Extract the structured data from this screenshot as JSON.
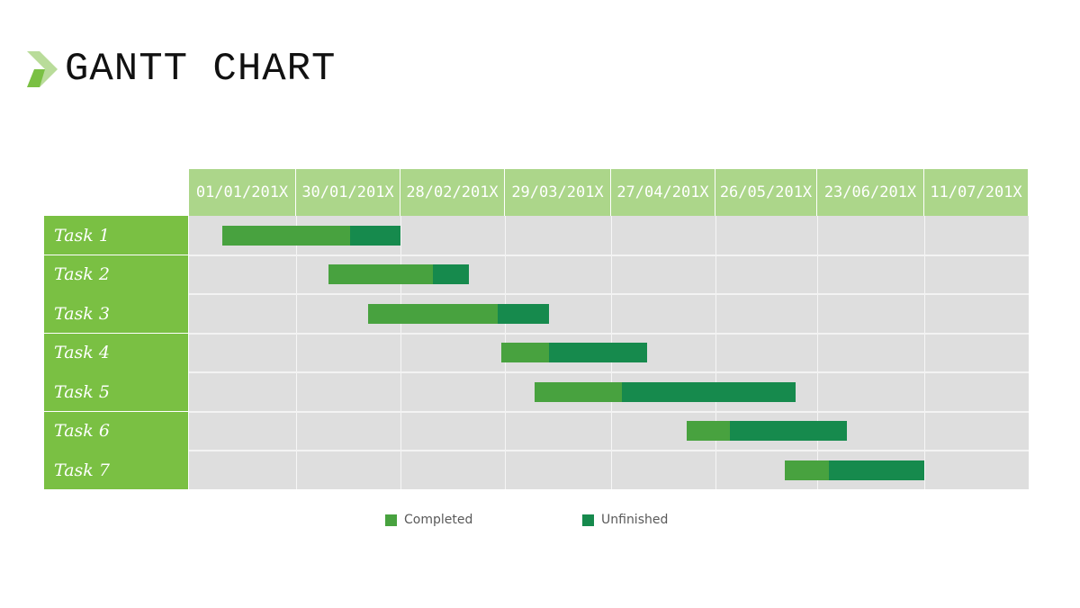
{
  "page": {
    "title": "GANTT CHART"
  },
  "colors": {
    "accent": "#7ac043",
    "header_bg": "#acd68a",
    "completed": "#48a23f",
    "unfinished": "#168a4d",
    "grid_bg": "#dedede"
  },
  "icons": {
    "title_marker": "chevron-right-icon"
  },
  "chart_data": {
    "type": "gantt",
    "title": "",
    "x_axis": {
      "tick_labels": [
        "01/01/201X",
        "30/01/201X",
        "28/02/201X",
        "29/03/201X",
        "27/04/201X",
        "26/05/201X",
        "23/06/201X",
        "11/07/201X"
      ],
      "tick_dates": [
        "201X-01-01",
        "201X-01-30",
        "201X-02-28",
        "201X-03-29",
        "201X-04-27",
        "201X-05-26",
        "201X-06-23",
        "201X-07-11"
      ],
      "range": [
        "201X-01-01",
        "201X-07-31"
      ]
    },
    "tasks": [
      {
        "name": "Task 1",
        "start": "201X-01-10",
        "split": "201X-02-14",
        "end": "201X-02-28"
      },
      {
        "name": "Task 2",
        "start": "201X-02-08",
        "split": "201X-03-09",
        "end": "201X-03-19"
      },
      {
        "name": "Task 3",
        "start": "201X-02-19",
        "split": "201X-03-27",
        "end": "201X-04-10"
      },
      {
        "name": "Task 4",
        "start": "201X-03-28",
        "split": "201X-04-10",
        "end": "201X-05-07"
      },
      {
        "name": "Task 5",
        "start": "201X-04-06",
        "split": "201X-04-30",
        "end": "201X-06-17"
      },
      {
        "name": "Task 6",
        "start": "201X-05-18",
        "split": "201X-05-30",
        "end": "201X-06-28"
      },
      {
        "name": "Task 7",
        "start": "201X-06-14",
        "split": "201X-06-25",
        "end": "201X-07-11"
      }
    ],
    "series": [
      {
        "name": "Completed",
        "segment": "start_to_split",
        "color": "#48a23f"
      },
      {
        "name": "Unfinished",
        "segment": "split_to_end",
        "color": "#168a4d"
      }
    ],
    "legend_position": "bottom-center",
    "grid": true
  }
}
